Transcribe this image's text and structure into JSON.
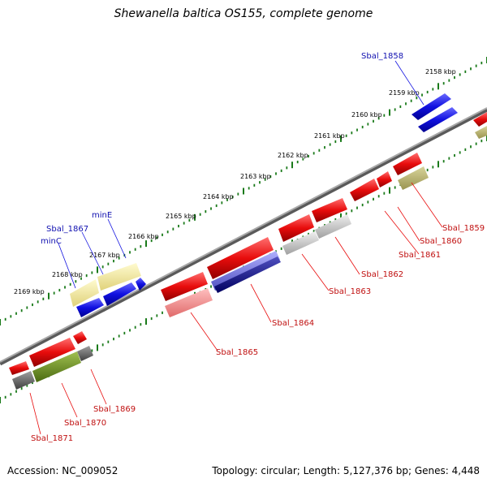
{
  "title": "Shewanella baltica OS155, complete genome",
  "footer": {
    "accession": "Accession: NC_009052",
    "summary": "Topology: circular; Length: 5,127,376 bp; Genes: 4,448"
  },
  "colors": {
    "cds_forward": "#1010e0",
    "cds_reverse": "#e80c0c",
    "backbone": "#7a7a7a",
    "tick_green": "#1a7a1a",
    "label_blue": "#1010b0",
    "label_red": "#c01010"
  },
  "scale_labels": [
    "2158 kbp",
    "2159 kbp",
    "2160 kbp",
    "2161 kbp",
    "2162 kbp",
    "2163 kbp",
    "2164 kbp",
    "2165 kbp",
    "2166 kbp",
    "2167 kbp",
    "2168 kbp",
    "2169 kbp"
  ],
  "forward_gene_labels": [
    "Sbal_1858",
    "minE",
    "Sbal_1867",
    "minC"
  ],
  "reverse_gene_labels": [
    "Sbal_1859",
    "Sbal_1860",
    "Sbal_1861",
    "Sbal_1862",
    "Sbal_1863",
    "Sbal_1864",
    "Sbal_1865",
    "Sbal_1869",
    "Sbal_1870",
    "Sbal_1871"
  ]
}
